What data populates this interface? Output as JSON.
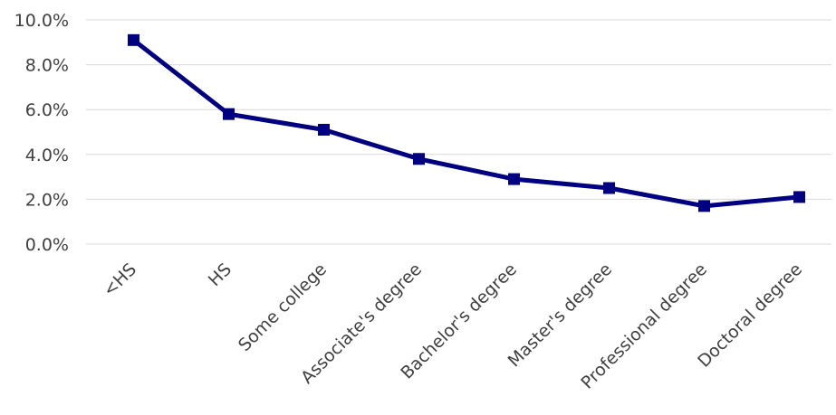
{
  "chart_data": {
    "type": "line",
    "title": "",
    "xlabel": "",
    "ylabel": "",
    "categories": [
      "<HS",
      "HS",
      "Some college",
      "Associate's degree",
      "Bachelor's degree",
      "Master's degree",
      "Professional degree",
      "Doctoral degree"
    ],
    "series": [
      {
        "values": [
          9.1,
          5.8,
          5.1,
          3.8,
          2.9,
          2.5,
          1.7,
          2.1
        ]
      }
    ],
    "ylim": [
      0,
      10
    ],
    "yticks": [
      0,
      2,
      4,
      6,
      8,
      10
    ],
    "ytick_labels": [
      "0.0%",
      "2.0%",
      "4.0%",
      "6.0%",
      "8.0%",
      "10.0%"
    ],
    "grid": true,
    "legend": "none",
    "colors": {
      "line": "#000080",
      "grid": "#d9d9d9",
      "text": "#404040"
    }
  }
}
